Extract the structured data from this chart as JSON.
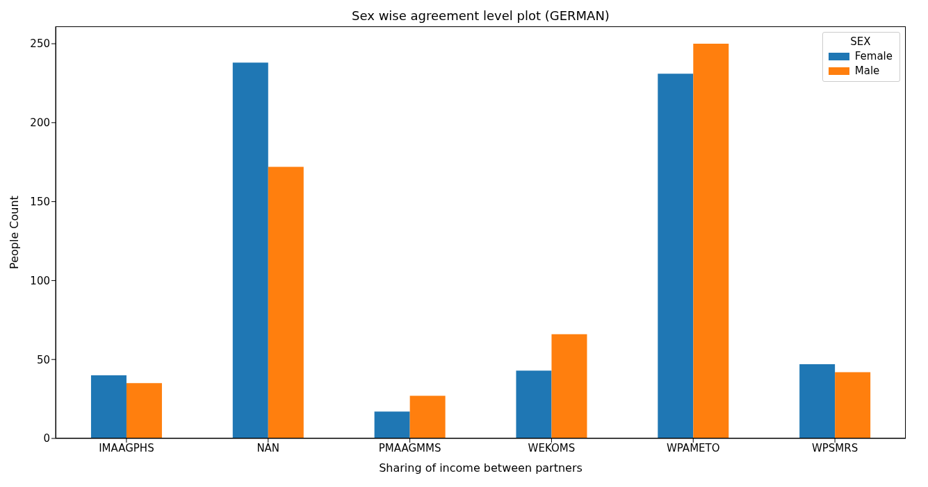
{
  "chart_data": {
    "type": "bar",
    "title": "Sex wise agreement level plot (GERMAN)",
    "xlabel": "Sharing of income between partners",
    "ylabel": "People Count",
    "legend_title": "SEX",
    "legend": "top right",
    "grid": false,
    "categories": [
      "IMAAGPHS",
      "NAN",
      "PMAAGMMS",
      "WEKOMS",
      "WPAMETO",
      "WPSMRS"
    ],
    "series": [
      {
        "name": "Female",
        "color": "#1f77b4",
        "values": [
          40,
          238,
          17,
          43,
          231,
          47
        ]
      },
      {
        "name": "Male",
        "color": "#ff7f0e",
        "values": [
          35,
          172,
          27,
          66,
          250,
          42
        ]
      }
    ],
    "ylim": [
      0,
      261
    ],
    "yticks": [
      0,
      50,
      100,
      150,
      200,
      250
    ]
  }
}
